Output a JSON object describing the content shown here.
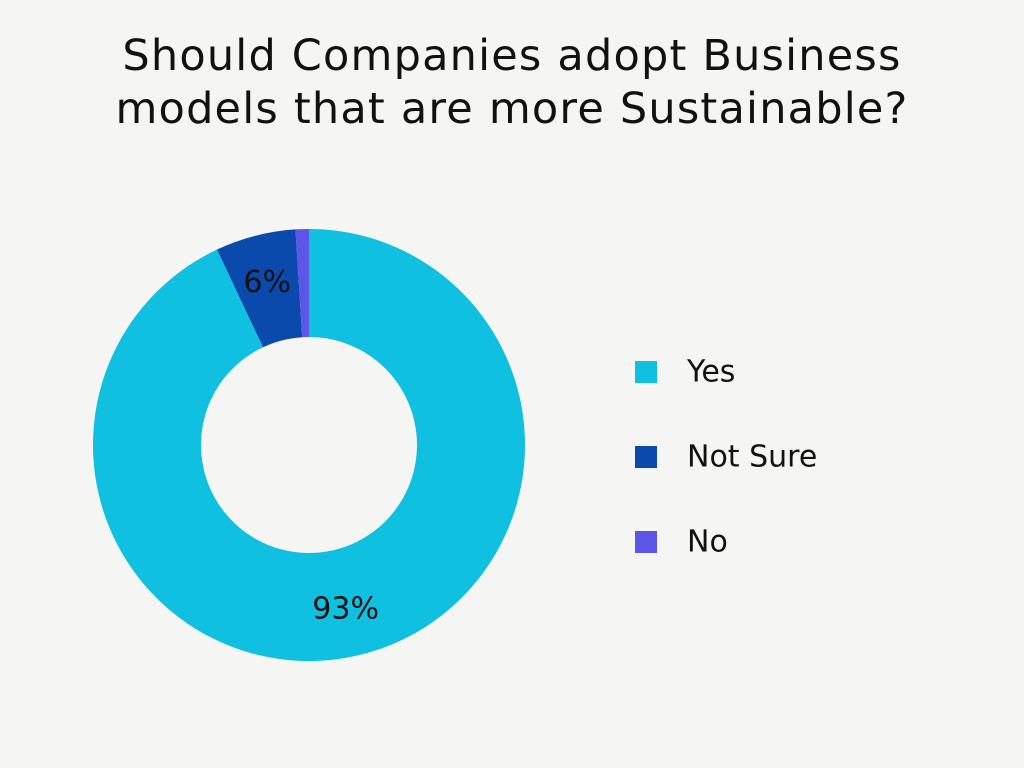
{
  "title_lines": [
    "Should Companies adopt Business",
    "models that are more Sustainable?"
  ],
  "chart_data": {
    "type": "pie",
    "donut": true,
    "title": "Should Companies adopt Business models that are more Sustainable?",
    "categories": [
      "Yes",
      "Not Sure",
      "No"
    ],
    "values": [
      93,
      6,
      1
    ],
    "value_labels": [
      "93%",
      "6%",
      ""
    ],
    "colors": [
      "#0fc0e0",
      "#0a4aad",
      "#5b56e6"
    ],
    "legend_position": "right"
  }
}
